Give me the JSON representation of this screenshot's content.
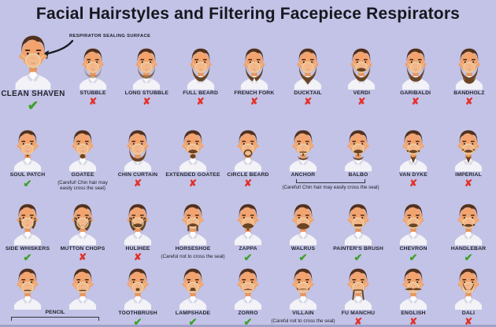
{
  "title": "Facial Hairstyles and Filtering Facepiece Respirators",
  "annotation": "RESPIRATOR SEALING SURFACE",
  "marks": {
    "yes": "✔",
    "no": "✘"
  },
  "notes": {
    "chin": "(Careful! Chin hair may easily cross the seal)",
    "seal": "(Careful not to cross the seal)"
  },
  "colors": {
    "background": "#c2c3e6",
    "title": "#17171f",
    "label": "#23232e",
    "check": "#3ea12b",
    "cross": "#e33028",
    "skin": "#f2a36e",
    "hair": "#53301b",
    "beard": "#6b4424",
    "mask_line": "#e8d4a8",
    "shirt": "#f2f2f7"
  },
  "rows": [
    {
      "cells": [
        {
          "label": "CLEAN SHAVEN",
          "mark": "yes",
          "face": "clean",
          "large": true
        },
        {
          "label": "STUBBLE",
          "mark": "no",
          "face": "stubble"
        },
        {
          "label": "LONG STUBBLE",
          "mark": "no",
          "face": "longstubble"
        },
        {
          "label": "FULL BEARD",
          "mark": "no",
          "face": "fullbeard"
        },
        {
          "label": "FRENCH FORK",
          "mark": "no",
          "face": "frenchfork"
        },
        {
          "label": "DUCKTAIL",
          "mark": "no",
          "face": "ducktail"
        },
        {
          "label": "VERDI",
          "mark": "no",
          "face": "verdi"
        },
        {
          "label": "GARIBALDI",
          "mark": "no",
          "face": "garibaldi"
        },
        {
          "label": "BANDHOLZ",
          "mark": "no",
          "face": "bandholz"
        }
      ]
    },
    {
      "cells": [
        {
          "label": "SOUL PATCH",
          "mark": "yes",
          "face": "soulpatch"
        },
        {
          "label": "GOATEE",
          "mark": "none",
          "note": "chin",
          "face": "goatee"
        },
        {
          "label": "CHIN CURTAIN",
          "mark": "no",
          "face": "chincurtain"
        },
        {
          "label": "EXTENDED GOATEE",
          "mark": "no",
          "face": "extgoatee"
        },
        {
          "label": "CIRCLE BEARD",
          "mark": "no",
          "face": "circlebeard"
        },
        {
          "label": "ANCHOR",
          "mark": "none",
          "face": "anchor"
        },
        {
          "label": "BALBO",
          "mark": "none",
          "face": "balbo"
        },
        {
          "label": "VAN DYKE",
          "mark": "no",
          "face": "vandyke"
        },
        {
          "label": "IMPERIAL",
          "mark": "no",
          "face": "imperial"
        }
      ],
      "groups": [
        {
          "start": 5,
          "end": 6,
          "note": "chin",
          "bracket": "up"
        }
      ]
    },
    {
      "cells": [
        {
          "label": "SIDE WHISKERS",
          "mark": "yes",
          "face": "sidewhiskers"
        },
        {
          "label": "MUTTON CHOPS",
          "mark": "no",
          "face": "muttonchops"
        },
        {
          "label": "HULIHEE",
          "mark": "no",
          "face": "hulihee"
        },
        {
          "label": "HORSESHOE",
          "mark": "none",
          "note": "seal",
          "face": "horseshoe"
        },
        {
          "label": "ZAPPA",
          "mark": "yes",
          "face": "zappa"
        },
        {
          "label": "WALRUS",
          "mark": "yes",
          "face": "walrus"
        },
        {
          "label": "PAINTER'S BRUSH",
          "mark": "yes",
          "face": "painters"
        },
        {
          "label": "CHEVRON",
          "mark": "yes",
          "face": "chevron"
        },
        {
          "label": "HANDLEBAR",
          "mark": "yes",
          "face": "handlebar"
        }
      ]
    },
    {
      "cells": [
        {
          "label": "",
          "mark": "yes",
          "face": "pencil",
          "ingroup": true
        },
        {
          "label": "",
          "mark": "yes",
          "face": "pencil",
          "ingroup": true
        },
        {
          "label": "TOOTHBRUSH",
          "mark": "yes",
          "face": "toothbrush"
        },
        {
          "label": "LAMPSHADE",
          "mark": "yes",
          "face": "lampshade"
        },
        {
          "label": "ZORRO",
          "mark": "yes",
          "face": "zorro"
        },
        {
          "label": "VILLAIN",
          "mark": "none",
          "note": "seal",
          "face": "villain"
        },
        {
          "label": "FU MANCHU",
          "mark": "no",
          "face": "fumanchu"
        },
        {
          "label": "ENGLISH",
          "mark": "no",
          "face": "english"
        },
        {
          "label": "DALI",
          "mark": "no",
          "face": "dali"
        }
      ],
      "groups": [
        {
          "start": 0,
          "end": 1,
          "label": "PENCIL",
          "bracket": "down"
        }
      ]
    }
  ]
}
